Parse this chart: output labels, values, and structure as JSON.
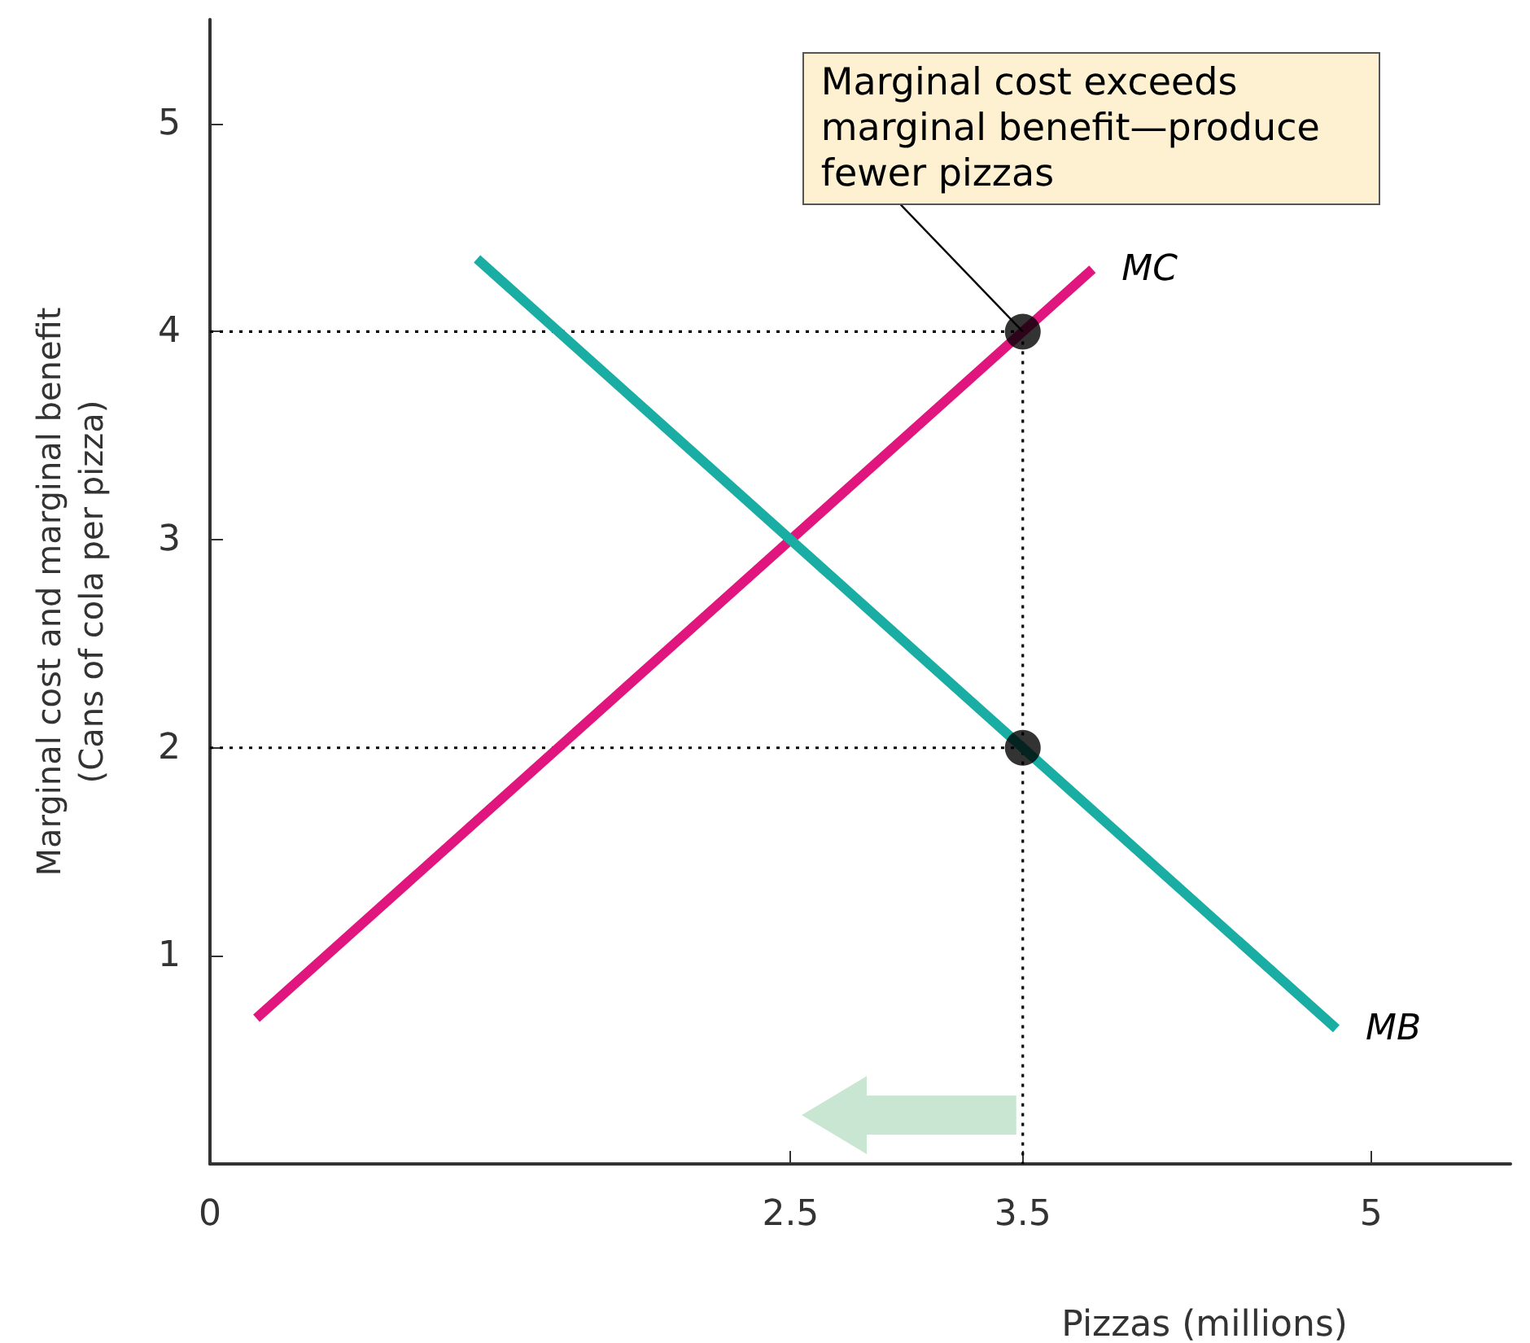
{
  "chart_data": {
    "type": "line",
    "xlabel": "Pizzas (millions)",
    "ylabel": "Marginal cost and marginal benefit\n(Cans of cola per pizza)",
    "xlim": [
      0,
      5.6
    ],
    "ylim": [
      0,
      5.5
    ],
    "xticks": [
      0,
      2.5,
      3.5,
      5
    ],
    "yticks": [
      1,
      2,
      3,
      4,
      5
    ],
    "grid": false,
    "legend": false,
    "series": [
      {
        "x": [
          0,
          3.5
        ],
        "values": [
          4,
          4
        ],
        "color": "#000000",
        "line_style": "dotted",
        "marker": "none"
      },
      {
        "x": [
          0,
          3.5
        ],
        "values": [
          2,
          2
        ],
        "color": "#000000",
        "line_style": "dotted",
        "marker": "none"
      },
      {
        "x": [
          3.5,
          3.5
        ],
        "values": [
          4,
          0
        ],
        "color": "#000000",
        "line_style": "dotted",
        "marker": "none"
      },
      {
        "name": "MC",
        "x": [
          0.2,
          3.8
        ],
        "values": [
          0.7,
          4.3
        ],
        "color": "#e0157d",
        "line_style": "solid",
        "marker": "none"
      },
      {
        "name": "MB",
        "x": [
          1.15,
          4.85
        ],
        "values": [
          4.35,
          0.65
        ],
        "color": "#1aada3",
        "line_style": "solid",
        "marker": "none"
      },
      {
        "type": "scatter",
        "x": [
          3.5,
          3.5
        ],
        "values": [
          4,
          2
        ],
        "color": "#000000",
        "marker": "circle"
      }
    ],
    "annotations": [
      {
        "text": "Marginal cost exceeds marginal benefit—produce fewer pizzas",
        "x": 3.5,
        "y": 4
      }
    ]
  }
}
